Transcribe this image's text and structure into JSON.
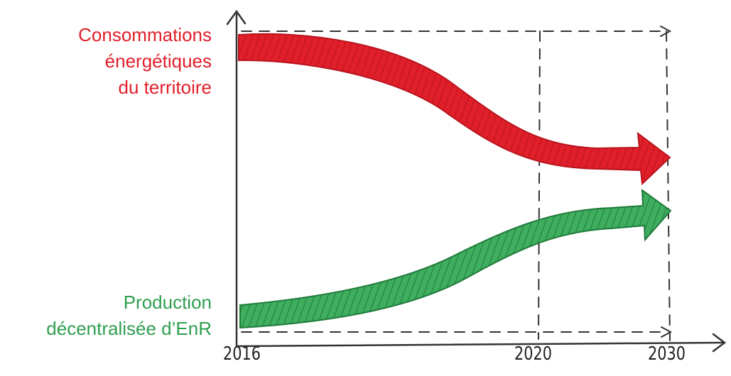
{
  "labels": {
    "consommations": [
      "Consommations",
      "énergétiques",
      "du territoire"
    ],
    "production": [
      "Production",
      "décentralisée d’EnR"
    ]
  },
  "x_axis": {
    "ticks": [
      "2016",
      "2020",
      "2030"
    ]
  },
  "colors": {
    "consommations": "#e11f2a",
    "production": "#2e9e4f",
    "axis": "#333333"
  },
  "trends": {
    "consommations": "decreasing",
    "production": "increasing"
  }
}
